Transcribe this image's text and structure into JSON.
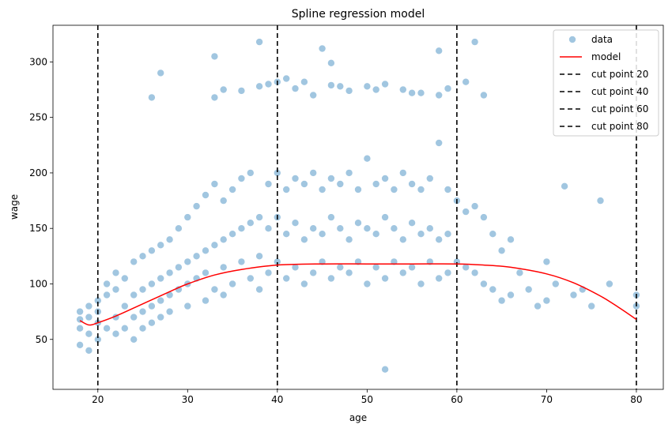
{
  "chart_data": {
    "type": "scatter",
    "title": "Spline regression model",
    "xlabel": "age",
    "ylabel": "wage",
    "xlim": [
      15,
      83
    ],
    "ylim": [
      5,
      333
    ],
    "xticks": [
      20,
      30,
      40,
      50,
      60,
      70,
      80
    ],
    "yticks": [
      50,
      100,
      150,
      200,
      250,
      300
    ],
    "grid": false,
    "legend_position": "top-right",
    "legend": [
      "data",
      "model",
      "cut point 20",
      "cut point 40",
      "cut point 60",
      "cut point 80"
    ],
    "colors": {
      "data": "#1f77b4",
      "model": "#ff0000",
      "cut": "#000000"
    },
    "cut_points": [
      20,
      40,
      60,
      80
    ],
    "model": {
      "name": "model",
      "x": [
        18,
        19,
        20,
        22,
        25,
        28,
        30,
        33,
        36,
        40,
        45,
        50,
        55,
        60,
        63,
        66,
        70,
        73,
        76,
        78,
        80
      ],
      "y": [
        67,
        63,
        65,
        71,
        82,
        93,
        100,
        108,
        113,
        117,
        118,
        118,
        118,
        118,
        117,
        115,
        109,
        101,
        89,
        79,
        68
      ]
    },
    "data": {
      "name": "data",
      "x": [
        18,
        18,
        18,
        18,
        19,
        19,
        19,
        19,
        20,
        20,
        20,
        20,
        21,
        21,
        21,
        22,
        22,
        22,
        22,
        23,
        23,
        23,
        24,
        24,
        24,
        24,
        25,
        25,
        25,
        25,
        26,
        26,
        26,
        26,
        27,
        27,
        27,
        27,
        28,
        28,
        28,
        28,
        29,
        29,
        29,
        30,
        30,
        30,
        30,
        31,
        31,
        31,
        32,
        32,
        32,
        32,
        33,
        33,
        33,
        34,
        34,
        34,
        34,
        35,
        35,
        35,
        36,
        36,
        36,
        37,
        37,
        37,
        38,
        38,
        38,
        39,
        39,
        39,
        40,
        40,
        40,
        41,
        41,
        41,
        42,
        42,
        42,
        43,
        43,
        43,
        44,
        44,
        44,
        45,
        45,
        45,
        46,
        46,
        46,
        47,
        47,
        47,
        48,
        48,
        48,
        49,
        49,
        49,
        50,
        50,
        50,
        51,
        51,
        51,
        52,
        52,
        52,
        53,
        53,
        53,
        54,
        54,
        54,
        55,
        55,
        55,
        56,
        56,
        56,
        57,
        57,
        57,
        58,
        58,
        58,
        59,
        59,
        59,
        60,
        60,
        61,
        61,
        62,
        62,
        63,
        63,
        64,
        64,
        65,
        65,
        66,
        66,
        67,
        68,
        69,
        70,
        70,
        71,
        72,
        73,
        74,
        75,
        76,
        77,
        80,
        80,
        34,
        38,
        40,
        41,
        42,
        44,
        46,
        48,
        50,
        52,
        54,
        56,
        58,
        61,
        33,
        36,
        39,
        43,
        47,
        51,
        55,
        59,
        63,
        26,
        58,
        62,
        45,
        38,
        46,
        27,
        33,
        52
      ],
      "y": [
        75,
        60,
        45,
        68,
        70,
        55,
        80,
        40,
        85,
        65,
        50,
        75,
        90,
        60,
        100,
        95,
        70,
        55,
        110,
        80,
        105,
        60,
        120,
        90,
        70,
        50,
        125,
        95,
        75,
        60,
        130,
        100,
        80,
        65,
        135,
        105,
        85,
        70,
        140,
        110,
        90,
        75,
        150,
        115,
        95,
        160,
        120,
        100,
        80,
        170,
        125,
        105,
        180,
        130,
        110,
        85,
        190,
        135,
        95,
        175,
        140,
        115,
        90,
        185,
        145,
        100,
        195,
        150,
        120,
        200,
        155,
        105,
        160,
        125,
        95,
        190,
        150,
        110,
        200,
        160,
        120,
        185,
        145,
        105,
        195,
        155,
        115,
        190,
        140,
        100,
        200,
        150,
        110,
        185,
        145,
        120,
        195,
        160,
        105,
        190,
        150,
        115,
        200,
        140,
        110,
        185,
        155,
        120,
        213,
        150,
        100,
        190,
        145,
        115,
        195,
        160,
        105,
        185,
        150,
        120,
        200,
        140,
        110,
        190,
        155,
        115,
        185,
        145,
        100,
        195,
        150,
        120,
        227,
        140,
        105,
        185,
        145,
        110,
        175,
        120,
        165,
        115,
        170,
        110,
        160,
        100,
        145,
        95,
        130,
        85,
        140,
        90,
        110,
        95,
        80,
        120,
        85,
        100,
        188,
        90,
        95,
        80,
        175,
        100,
        80,
        90,
        275,
        278,
        282,
        285,
        276,
        270,
        279,
        274,
        278,
        280,
        275,
        272,
        270,
        282,
        268,
        274,
        280,
        282,
        278,
        275,
        272,
        276,
        270,
        268,
        310,
        318,
        312,
        318,
        299,
        290,
        305,
        23
      ]
    }
  }
}
